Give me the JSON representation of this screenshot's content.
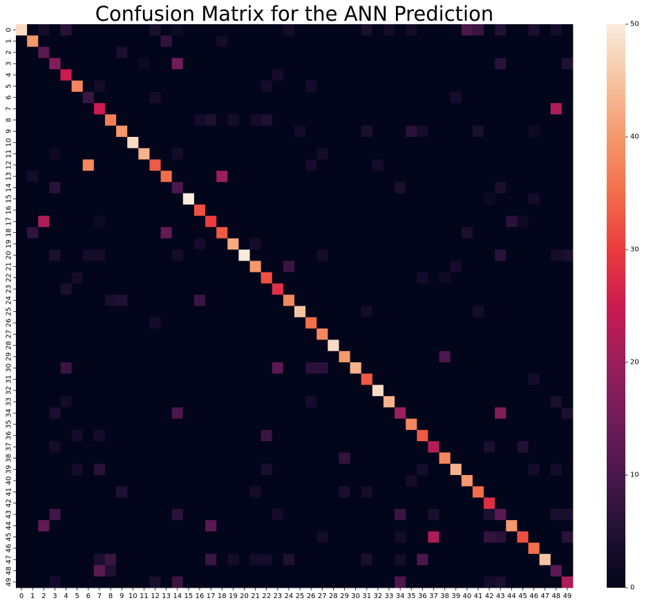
{
  "chart_data": {
    "type": "heatmap",
    "title": "Confusion Matrix for the ANN Prediction",
    "xlabel": "",
    "ylabel": "",
    "x_categories": [
      "0",
      "1",
      "2",
      "3",
      "4",
      "5",
      "6",
      "7",
      "8",
      "9",
      "10",
      "11",
      "12",
      "13",
      "14",
      "15",
      "16",
      "17",
      "18",
      "19",
      "20",
      "21",
      "22",
      "23",
      "24",
      "25",
      "26",
      "27",
      "28",
      "29",
      "30",
      "31",
      "32",
      "33",
      "34",
      "35",
      "36",
      "37",
      "38",
      "39",
      "40",
      "41",
      "42",
      "43",
      "44",
      "45",
      "46",
      "47",
      "48",
      "49"
    ],
    "y_categories": [
      "0",
      "1",
      "2",
      "3",
      "4",
      "5",
      "6",
      "7",
      "8",
      "9",
      "10",
      "11",
      "12",
      "13",
      "14",
      "15",
      "16",
      "17",
      "18",
      "19",
      "20",
      "21",
      "22",
      "23",
      "24",
      "25",
      "26",
      "27",
      "28",
      "29",
      "30",
      "31",
      "32",
      "33",
      "34",
      "35",
      "36",
      "37",
      "38",
      "39",
      "40",
      "41",
      "42",
      "43",
      "44",
      "45",
      "46",
      "47",
      "48",
      "49"
    ],
    "diagonal": [
      48,
      40,
      12,
      17,
      25,
      38,
      8,
      25,
      37,
      40,
      48,
      43,
      33,
      35,
      10,
      50,
      32,
      30,
      33,
      42,
      50,
      40,
      32,
      28,
      38,
      45,
      35,
      38,
      48,
      40,
      43,
      33,
      48,
      43,
      20,
      38,
      33,
      23,
      38,
      43,
      40,
      35,
      28,
      12,
      40,
      32,
      35,
      45,
      12,
      22
    ],
    "off_diagonal": [
      [
        0,
        2,
        3
      ],
      [
        0,
        4,
        6
      ],
      [
        0,
        12,
        4
      ],
      [
        0,
        14,
        2
      ],
      [
        0,
        24,
        3
      ],
      [
        0,
        31,
        4
      ],
      [
        0,
        33,
        3
      ],
      [
        0,
        35,
        3
      ],
      [
        0,
        40,
        10
      ],
      [
        0,
        41,
        8
      ],
      [
        0,
        43,
        5
      ],
      [
        0,
        46,
        4
      ],
      [
        0,
        48,
        3
      ],
      [
        1,
        13,
        7
      ],
      [
        1,
        18,
        3
      ],
      [
        2,
        9,
        4
      ],
      [
        3,
        11,
        2
      ],
      [
        3,
        14,
        15
      ],
      [
        3,
        43,
        6
      ],
      [
        3,
        49,
        5
      ],
      [
        4,
        23,
        3
      ],
      [
        5,
        7,
        3
      ],
      [
        5,
        22,
        3
      ],
      [
        5,
        26,
        3
      ],
      [
        6,
        12,
        3
      ],
      [
        6,
        39,
        3
      ],
      [
        7,
        48,
        22
      ],
      [
        8,
        16,
        3
      ],
      [
        8,
        17,
        5
      ],
      [
        8,
        19,
        3
      ],
      [
        8,
        21,
        3
      ],
      [
        8,
        22,
        5
      ],
      [
        9,
        25,
        3
      ],
      [
        9,
        31,
        4
      ],
      [
        9,
        35,
        6
      ],
      [
        9,
        36,
        3
      ],
      [
        9,
        41,
        4
      ],
      [
        9,
        46,
        2
      ],
      [
        11,
        3,
        2
      ],
      [
        11,
        14,
        3
      ],
      [
        11,
        27,
        3
      ],
      [
        12,
        6,
        38
      ],
      [
        12,
        26,
        3
      ],
      [
        12,
        32,
        3
      ],
      [
        13,
        1,
        3
      ],
      [
        13,
        18,
        20
      ],
      [
        14,
        3,
        6
      ],
      [
        14,
        34,
        4
      ],
      [
        14,
        43,
        4
      ],
      [
        15,
        42,
        2
      ],
      [
        15,
        46,
        3
      ],
      [
        17,
        2,
        22
      ],
      [
        17,
        7,
        2
      ],
      [
        17,
        44,
        6
      ],
      [
        17,
        45,
        2
      ],
      [
        18,
        1,
        7
      ],
      [
        18,
        13,
        13
      ],
      [
        18,
        40,
        4
      ],
      [
        19,
        16,
        3
      ],
      [
        19,
        21,
        3
      ],
      [
        20,
        3,
        4
      ],
      [
        20,
        6,
        3
      ],
      [
        20,
        7,
        3
      ],
      [
        20,
        14,
        3
      ],
      [
        20,
        27,
        3
      ],
      [
        20,
        43,
        6
      ],
      [
        20,
        48,
        3
      ],
      [
        20,
        49,
        4
      ],
      [
        21,
        24,
        8
      ],
      [
        21,
        39,
        3
      ],
      [
        22,
        5,
        3
      ],
      [
        22,
        36,
        3
      ],
      [
        22,
        38,
        2
      ],
      [
        23,
        4,
        4
      ],
      [
        24,
        8,
        4
      ],
      [
        24,
        9,
        5
      ],
      [
        24,
        16,
        8
      ],
      [
        25,
        31,
        3
      ],
      [
        25,
        41,
        3
      ],
      [
        26,
        12,
        3
      ],
      [
        29,
        38,
        10
      ],
      [
        30,
        4,
        8
      ],
      [
        30,
        23,
        12
      ],
      [
        30,
        26,
        6
      ],
      [
        30,
        27,
        6
      ],
      [
        31,
        46,
        3
      ],
      [
        33,
        4,
        3
      ],
      [
        33,
        26,
        3
      ],
      [
        33,
        48,
        4
      ],
      [
        34,
        3,
        4
      ],
      [
        34,
        14,
        10
      ],
      [
        34,
        43,
        17
      ],
      [
        34,
        49,
        4
      ],
      [
        36,
        5,
        3
      ],
      [
        36,
        7,
        3
      ],
      [
        36,
        22,
        8
      ],
      [
        37,
        3,
        3
      ],
      [
        37,
        42,
        4
      ],
      [
        37,
        45,
        5
      ],
      [
        38,
        29,
        7
      ],
      [
        39,
        5,
        3
      ],
      [
        39,
        7,
        6
      ],
      [
        39,
        22,
        4
      ],
      [
        39,
        36,
        3
      ],
      [
        39,
        46,
        3
      ],
      [
        39,
        48,
        3
      ],
      [
        40,
        35,
        3
      ],
      [
        41,
        9,
        5
      ],
      [
        41,
        21,
        3
      ],
      [
        41,
        29,
        4
      ],
      [
        41,
        31,
        3
      ],
      [
        43,
        3,
        9
      ],
      [
        43,
        14,
        6
      ],
      [
        43,
        23,
        3
      ],
      [
        43,
        34,
        8
      ],
      [
        43,
        37,
        4
      ],
      [
        43,
        42,
        4
      ],
      [
        43,
        43,
        12
      ],
      [
        43,
        48,
        4
      ],
      [
        43,
        49,
        4
      ],
      [
        44,
        2,
        13
      ],
      [
        44,
        17,
        12
      ],
      [
        45,
        27,
        3
      ],
      [
        45,
        34,
        3
      ],
      [
        45,
        37,
        22
      ],
      [
        45,
        42,
        7
      ],
      [
        45,
        43,
        6
      ],
      [
        45,
        49,
        6
      ],
      [
        47,
        7,
        4
      ],
      [
        47,
        8,
        8
      ],
      [
        47,
        17,
        8
      ],
      [
        47,
        19,
        3
      ],
      [
        47,
        21,
        3
      ],
      [
        47,
        22,
        3
      ],
      [
        47,
        24,
        5
      ],
      [
        47,
        31,
        4
      ],
      [
        47,
        34,
        3
      ],
      [
        47,
        36,
        10
      ],
      [
        48,
        7,
        12
      ],
      [
        48,
        8,
        5
      ],
      [
        49,
        3,
        3
      ],
      [
        49,
        12,
        4
      ],
      [
        49,
        14,
        8
      ],
      [
        49,
        34,
        10
      ],
      [
        49,
        42,
        3
      ],
      [
        49,
        43,
        4
      ]
    ],
    "colorbar": {
      "min": 0,
      "max": 50,
      "ticks": [
        "0",
        "10",
        "20",
        "30",
        "40",
        "50"
      ]
    }
  }
}
